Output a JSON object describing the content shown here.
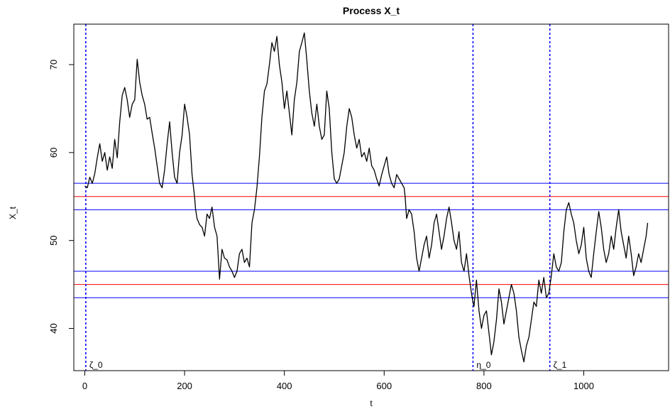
{
  "chart_data": {
    "type": "line",
    "title": "Process X_t",
    "xlabel": "t",
    "ylabel": "X_t",
    "xlim": [
      -22,
      1170
    ],
    "ylim": [
      35.2,
      74.6
    ],
    "x_ticks": [
      0,
      200,
      400,
      600,
      800,
      1000
    ],
    "y_ticks": [
      40,
      50,
      60,
      70
    ],
    "grid": false,
    "series": [
      {
        "color": "#000000",
        "points": [
          [
            0,
            56.2
          ],
          [
            5,
            56.0
          ],
          [
            10,
            57.2
          ],
          [
            15,
            56.5
          ],
          [
            20,
            57.6
          ],
          [
            25,
            59.4
          ],
          [
            30,
            61.0
          ],
          [
            35,
            59.0
          ],
          [
            40,
            60.0
          ],
          [
            45,
            58.0
          ],
          [
            50,
            59.5
          ],
          [
            55,
            58.2
          ],
          [
            60,
            61.5
          ],
          [
            65,
            59.4
          ],
          [
            70,
            63.5
          ],
          [
            75,
            66.5
          ],
          [
            80,
            67.4
          ],
          [
            85,
            66.0
          ],
          [
            90,
            64.0
          ],
          [
            95,
            65.5
          ],
          [
            100,
            66.0
          ],
          [
            105,
            70.6
          ],
          [
            110,
            68.0
          ],
          [
            115,
            66.5
          ],
          [
            120,
            65.5
          ],
          [
            125,
            63.8
          ],
          [
            130,
            64.0
          ],
          [
            135,
            62.2
          ],
          [
            140,
            60.5
          ],
          [
            145,
            58.5
          ],
          [
            150,
            56.5
          ],
          [
            155,
            56.0
          ],
          [
            160,
            58.0
          ],
          [
            165,
            61.0
          ],
          [
            170,
            63.5
          ],
          [
            175,
            60.0
          ],
          [
            180,
            57.2
          ],
          [
            185,
            56.5
          ],
          [
            190,
            60.0
          ],
          [
            195,
            62.0
          ],
          [
            200,
            65.5
          ],
          [
            205,
            64.0
          ],
          [
            210,
            62.0
          ],
          [
            215,
            57.5
          ],
          [
            220,
            55.0
          ],
          [
            222,
            53.6
          ],
          [
            225,
            52.5
          ],
          [
            230,
            51.8
          ],
          [
            235,
            51.5
          ],
          [
            240,
            50.5
          ],
          [
            245,
            53.0
          ],
          [
            250,
            52.5
          ],
          [
            255,
            53.8
          ],
          [
            260,
            51.5
          ],
          [
            265,
            50.5
          ],
          [
            270,
            45.6
          ],
          [
            275,
            49.0
          ],
          [
            280,
            48.0
          ],
          [
            285,
            47.8
          ],
          [
            290,
            47.0
          ],
          [
            295,
            46.5
          ],
          [
            300,
            45.8
          ],
          [
            305,
            46.5
          ],
          [
            310,
            48.5
          ],
          [
            315,
            49.0
          ],
          [
            320,
            47.5
          ],
          [
            325,
            48.0
          ],
          [
            330,
            47.0
          ],
          [
            335,
            52.0
          ],
          [
            340,
            53.5
          ],
          [
            345,
            56.0
          ],
          [
            350,
            59.5
          ],
          [
            355,
            64.0
          ],
          [
            360,
            67.0
          ],
          [
            365,
            67.8
          ],
          [
            370,
            70.0
          ],
          [
            375,
            72.5
          ],
          [
            380,
            71.5
          ],
          [
            385,
            73.2
          ],
          [
            390,
            70.0
          ],
          [
            395,
            68.0
          ],
          [
            400,
            65.0
          ],
          [
            405,
            67.0
          ],
          [
            410,
            64.5
          ],
          [
            415,
            62.0
          ],
          [
            420,
            66.0
          ],
          [
            425,
            68.0
          ],
          [
            430,
            71.5
          ],
          [
            435,
            72.5
          ],
          [
            440,
            73.6
          ],
          [
            445,
            70.5
          ],
          [
            450,
            67.0
          ],
          [
            455,
            64.5
          ],
          [
            460,
            63.0
          ],
          [
            465,
            65.5
          ],
          [
            470,
            63.0
          ],
          [
            475,
            61.5
          ],
          [
            480,
            62.0
          ],
          [
            485,
            67.0
          ],
          [
            490,
            65.0
          ],
          [
            495,
            60.0
          ],
          [
            500,
            57.0
          ],
          [
            505,
            56.5
          ],
          [
            510,
            57.0
          ],
          [
            515,
            58.5
          ],
          [
            520,
            60.0
          ],
          [
            525,
            63.0
          ],
          [
            530,
            65.0
          ],
          [
            535,
            64.0
          ],
          [
            540,
            62.0
          ],
          [
            545,
            60.5
          ],
          [
            550,
            61.5
          ],
          [
            555,
            59.5
          ],
          [
            560,
            60.0
          ],
          [
            565,
            59.0
          ],
          [
            570,
            60.5
          ],
          [
            575,
            58.5
          ],
          [
            580,
            58.0
          ],
          [
            585,
            57.0
          ],
          [
            590,
            56.2
          ],
          [
            595,
            57.5
          ],
          [
            600,
            58.5
          ],
          [
            605,
            59.5
          ],
          [
            610,
            57.5
          ],
          [
            615,
            56.5
          ],
          [
            620,
            56.0
          ],
          [
            625,
            57.5
          ],
          [
            630,
            57.0
          ],
          [
            635,
            56.5
          ],
          [
            640,
            56.0
          ],
          [
            642,
            55.0
          ],
          [
            645,
            52.5
          ],
          [
            650,
            53.5
          ],
          [
            655,
            53.0
          ],
          [
            660,
            51.0
          ],
          [
            665,
            48.0
          ],
          [
            670,
            46.5
          ],
          [
            675,
            48.0
          ],
          [
            680,
            49.5
          ],
          [
            685,
            50.5
          ],
          [
            690,
            48.0
          ],
          [
            695,
            49.5
          ],
          [
            700,
            52.0
          ],
          [
            705,
            53.0
          ],
          [
            710,
            51.0
          ],
          [
            715,
            49.0
          ],
          [
            720,
            50.5
          ],
          [
            725,
            52.5
          ],
          [
            730,
            53.8
          ],
          [
            735,
            52.0
          ],
          [
            740,
            50.0
          ],
          [
            745,
            49.0
          ],
          [
            750,
            51.0
          ],
          [
            755,
            47.5
          ],
          [
            760,
            46.5
          ],
          [
            765,
            48.5
          ],
          [
            770,
            46.0
          ],
          [
            775,
            44.0
          ],
          [
            778,
            43.0
          ],
          [
            780,
            42.5
          ],
          [
            785,
            45.5
          ],
          [
            790,
            42.0
          ],
          [
            795,
            40.0
          ],
          [
            800,
            41.5
          ],
          [
            805,
            42.0
          ],
          [
            810,
            39.5
          ],
          [
            815,
            37.0
          ],
          [
            820,
            38.5
          ],
          [
            825,
            41.0
          ],
          [
            830,
            44.5
          ],
          [
            835,
            43.0
          ],
          [
            840,
            40.5
          ],
          [
            845,
            42.0
          ],
          [
            850,
            43.5
          ],
          [
            855,
            45.0
          ],
          [
            860,
            44.0
          ],
          [
            865,
            42.0
          ],
          [
            870,
            39.0
          ],
          [
            875,
            37.5
          ],
          [
            880,
            36.2
          ],
          [
            885,
            38.0
          ],
          [
            890,
            39.0
          ],
          [
            895,
            41.0
          ],
          [
            900,
            43.0
          ],
          [
            905,
            42.5
          ],
          [
            910,
            45.5
          ],
          [
            915,
            44.0
          ],
          [
            920,
            45.8
          ],
          [
            925,
            43.5
          ],
          [
            930,
            44.0
          ],
          [
            935,
            46.0
          ],
          [
            940,
            48.5
          ],
          [
            945,
            47.0
          ],
          [
            950,
            46.5
          ],
          [
            955,
            47.5
          ],
          [
            960,
            51.0
          ],
          [
            965,
            53.5
          ],
          [
            970,
            54.3
          ],
          [
            975,
            53.0
          ],
          [
            980,
            52.0
          ],
          [
            985,
            50.0
          ],
          [
            990,
            48.5
          ],
          [
            995,
            49.5
          ],
          [
            1000,
            51.5
          ],
          [
            1005,
            48.0
          ],
          [
            1010,
            46.5
          ],
          [
            1015,
            45.8
          ],
          [
            1020,
            48.5
          ],
          [
            1025,
            51.0
          ],
          [
            1030,
            53.3
          ],
          [
            1035,
            51.5
          ],
          [
            1040,
            49.0
          ],
          [
            1045,
            47.5
          ],
          [
            1050,
            48.5
          ],
          [
            1055,
            50.5
          ],
          [
            1060,
            49.0
          ],
          [
            1065,
            51.5
          ],
          [
            1070,
            53.5
          ],
          [
            1075,
            51.0
          ],
          [
            1080,
            49.5
          ],
          [
            1085,
            48.0
          ],
          [
            1090,
            50.5
          ],
          [
            1095,
            48.5
          ],
          [
            1100,
            46.0
          ],
          [
            1105,
            47.0
          ],
          [
            1110,
            48.5
          ],
          [
            1115,
            47.5
          ],
          [
            1120,
            49.0
          ],
          [
            1125,
            50.5
          ],
          [
            1128,
            52.0
          ]
        ]
      }
    ],
    "hlines": [
      {
        "y": 56.5,
        "color": "#0000ff"
      },
      {
        "y": 55.0,
        "color": "#ff0000"
      },
      {
        "y": 53.5,
        "color": "#0000ff"
      },
      {
        "y": 46.5,
        "color": "#0000ff"
      },
      {
        "y": 45.0,
        "color": "#ff0000"
      },
      {
        "y": 43.5,
        "color": "#0000ff"
      }
    ],
    "vlines": [
      {
        "x": 2,
        "label": "ζ_0",
        "color": "#0000ff"
      },
      {
        "x": 778,
        "label": "η_0",
        "color": "#0000ff"
      },
      {
        "x": 932,
        "label": "ζ_1",
        "color": "#0000ff"
      }
    ]
  }
}
